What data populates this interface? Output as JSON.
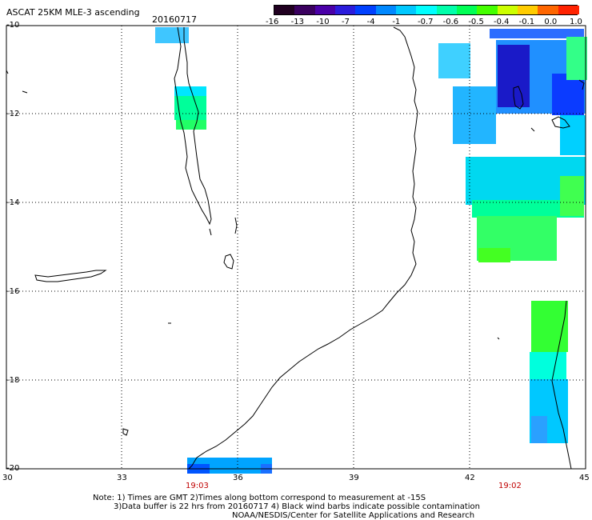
{
  "title": "ASCAT 25KM MLE-3 ascending",
  "date": "20160717",
  "colorbar": {
    "labels": [
      "-16",
      "-13",
      "-10",
      "-7",
      "-4",
      "-1",
      "-0.7",
      "-0.6",
      "-0.5",
      "-0.4",
      "-0.1",
      "0.0",
      "1.0"
    ],
    "colors": [
      "#200020",
      "#3a005f",
      "#4a00a8",
      "#2b1cdc",
      "#0040ff",
      "#0088ff",
      "#00c8ff",
      "#00ffff",
      "#00ffaa",
      "#00ff55",
      "#44ff00",
      "#ccff00",
      "#ffcc00",
      "#ff6600",
      "#ff2200"
    ]
  },
  "axes": {
    "lat_labels": [
      "-10",
      "-12",
      "-14",
      "-16",
      "-18",
      "-20"
    ],
    "lon_labels": [
      "30",
      "33",
      "36",
      "39",
      "42",
      "45"
    ]
  },
  "pass_times": [
    "19:03",
    "19:02"
  ],
  "notes": {
    "line1": "Note: 1) Times are GMT 2)Times along bottom correspond to measurement at -15S",
    "line2": "3)Data buffer is 22 hrs from 20160717 4) Black wind barbs indicate possible contamination",
    "line3": "NOAA/NESDIS/Center for Satellite Applications and Research"
  },
  "colors": {
    "land_outline": "#000000",
    "grid": "#000000",
    "time_label": "#c00000"
  }
}
